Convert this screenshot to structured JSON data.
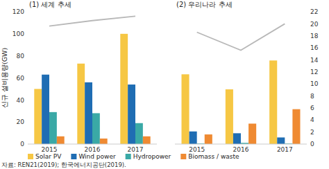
{
  "chart_data": [
    {
      "type": "bar",
      "title": "(1) 세계 추세",
      "y_label": "신규 설비용량(GW)",
      "categories": [
        "2015",
        "2016",
        "2017"
      ],
      "ylim": [
        0,
        120
      ],
      "yticks": [
        0,
        20,
        40,
        60,
        80,
        100,
        120
      ],
      "grid": false,
      "legend": "bottom",
      "series": [
        {
          "name": "Solar PV",
          "color": "#f6c744",
          "values": [
            50,
            73,
            100
          ]
        },
        {
          "name": "Wind power",
          "color": "#1f6db3",
          "values": [
            63,
            56,
            54
          ]
        },
        {
          "name": "Hydropower",
          "color": "#3aa9a6",
          "values": [
            29,
            28,
            19
          ]
        },
        {
          "name": "Biomass / waste",
          "color": "#ef8a32",
          "values": [
            7,
            5,
            7
          ]
        },
        {
          "type": "line",
          "color": "#b8b8b8",
          "values": [
            107,
            112,
            116
          ]
        }
      ]
    },
    {
      "type": "bar",
      "title": "(2) 우리나라 추세",
      "categories": [
        "2015",
        "2016",
        "2017"
      ],
      "y2lim": [
        0,
        22
      ],
      "y2ticks": [
        0,
        2,
        4,
        6,
        8,
        10,
        12,
        14,
        16,
        18,
        20,
        22
      ],
      "grid": false,
      "legend": "none",
      "series": [
        {
          "name": "Solar PV",
          "color": "#f6c744",
          "values": [
            11.6,
            9.1,
            13.9
          ],
          "axis": "y2"
        },
        {
          "name": "Wind power",
          "color": "#1f6db3",
          "values": [
            2.1,
            1.8,
            1.1
          ],
          "axis": "y2"
        },
        {
          "name": "Hydropower",
          "color": "#3aa9a6",
          "values": [
            0.1,
            0.2,
            0.1
          ],
          "axis": "y2"
        },
        {
          "name": "Biomass / waste",
          "color": "#ef8a32",
          "values": [
            1.6,
            3.4,
            5.8
          ],
          "axis": "y2"
        },
        {
          "type": "line",
          "color": "#b8b8b8",
          "values": [
            18.6,
            15.6,
            20
          ],
          "axis": "y2"
        }
      ]
    }
  ],
  "source": "자료: REN21(2019); 한국에너지공단(2019)."
}
